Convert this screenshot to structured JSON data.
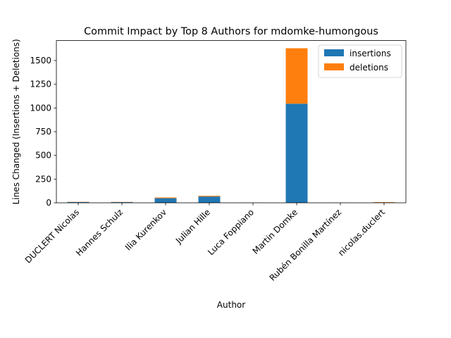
{
  "chart_data": {
    "type": "bar",
    "stacked": true,
    "title": "Commit Impact by Top 8 Authors for mdomke-humongous",
    "xlabel": "Author",
    "ylabel": "Lines Changed (Insertions + Deletions)",
    "categories": [
      "DUCLERT Nicolas",
      "Hannes Schulz",
      "Ilia Kurenkov",
      "Julian Hille",
      "Luca Foppiano",
      "Martin Domke",
      "Rubén Bonilla Martínez",
      "nicolas.duclert"
    ],
    "series": [
      {
        "name": "insertions",
        "color": "#1f77b4",
        "values": [
          8,
          7,
          48,
          66,
          1,
          1045,
          1,
          3
        ]
      },
      {
        "name": "deletions",
        "color": "#ff7f0e",
        "values": [
          2,
          2,
          8,
          8,
          0,
          585,
          0,
          4
        ]
      }
    ],
    "ylim": [
      0,
      1711
    ],
    "yticks": [
      0,
      250,
      500,
      750,
      1000,
      1250,
      1500
    ],
    "legend_position": "top-right",
    "grid": false
  }
}
